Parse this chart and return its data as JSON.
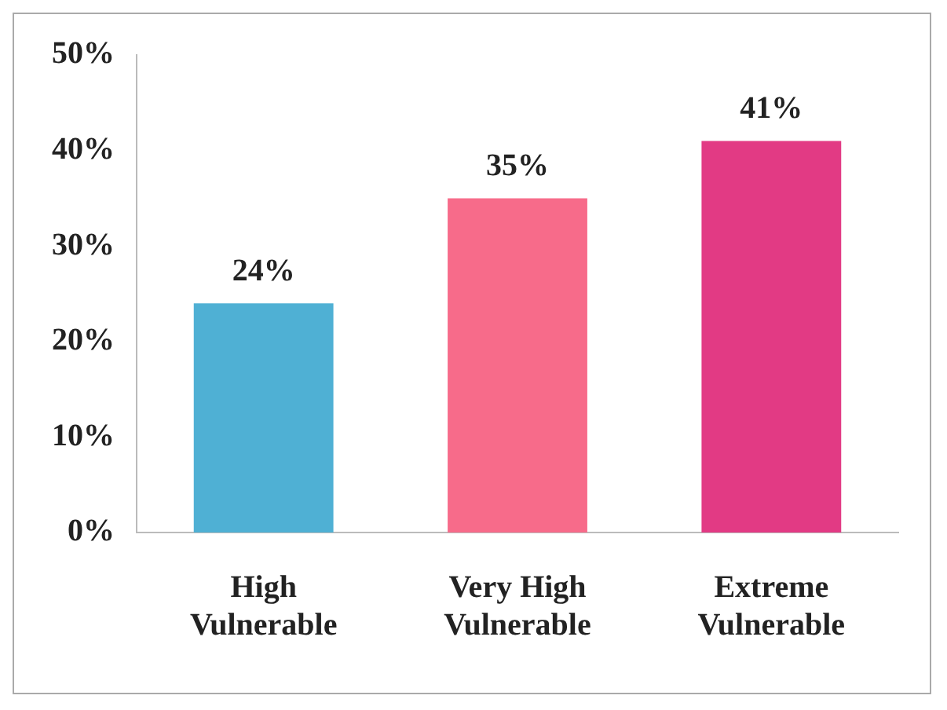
{
  "chart_data": {
    "type": "bar",
    "categories": [
      "High Vulnerable",
      "Very High Vulnerable",
      "Extreme Vulnerable"
    ],
    "values": [
      24,
      35,
      41
    ],
    "colors": [
      "#4fb0d4",
      "#f76b8a",
      "#e23a84"
    ],
    "value_labels": [
      "24%",
      "35%",
      "41%"
    ],
    "ylim": [
      0,
      50
    ],
    "yticks": [
      {
        "value": 0,
        "label": "0%"
      },
      {
        "value": 10,
        "label": "10%"
      },
      {
        "value": 20,
        "label": "20%"
      },
      {
        "value": 30,
        "label": "30%"
      },
      {
        "value": 40,
        "label": "40%"
      },
      {
        "value": 50,
        "label": "50%"
      }
    ],
    "grid": false,
    "legend": false
  }
}
